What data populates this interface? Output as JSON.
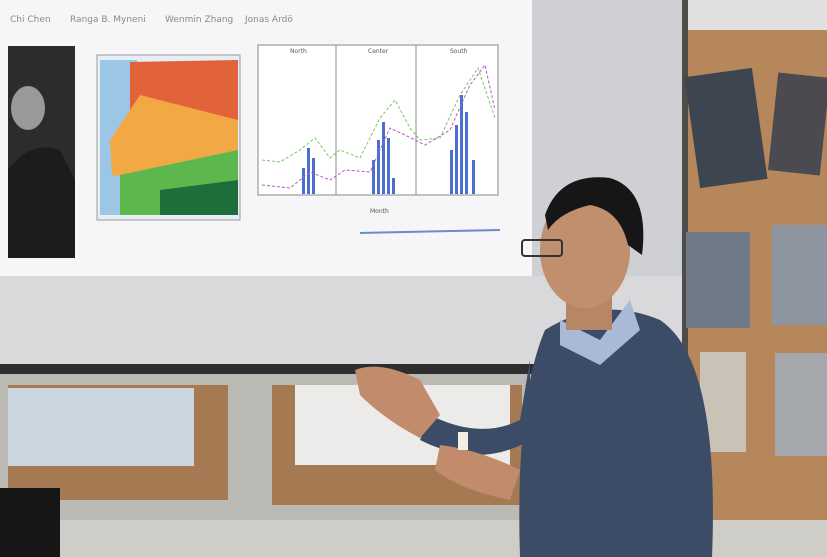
{
  "slide": {
    "authors": [
      "Chi Chen",
      "Ranga B. Myneni",
      "Wenmin Zhang",
      "Jonas Ardö"
    ],
    "panels": [
      "North",
      "Center",
      "South"
    ],
    "x_label": "Month"
  }
}
